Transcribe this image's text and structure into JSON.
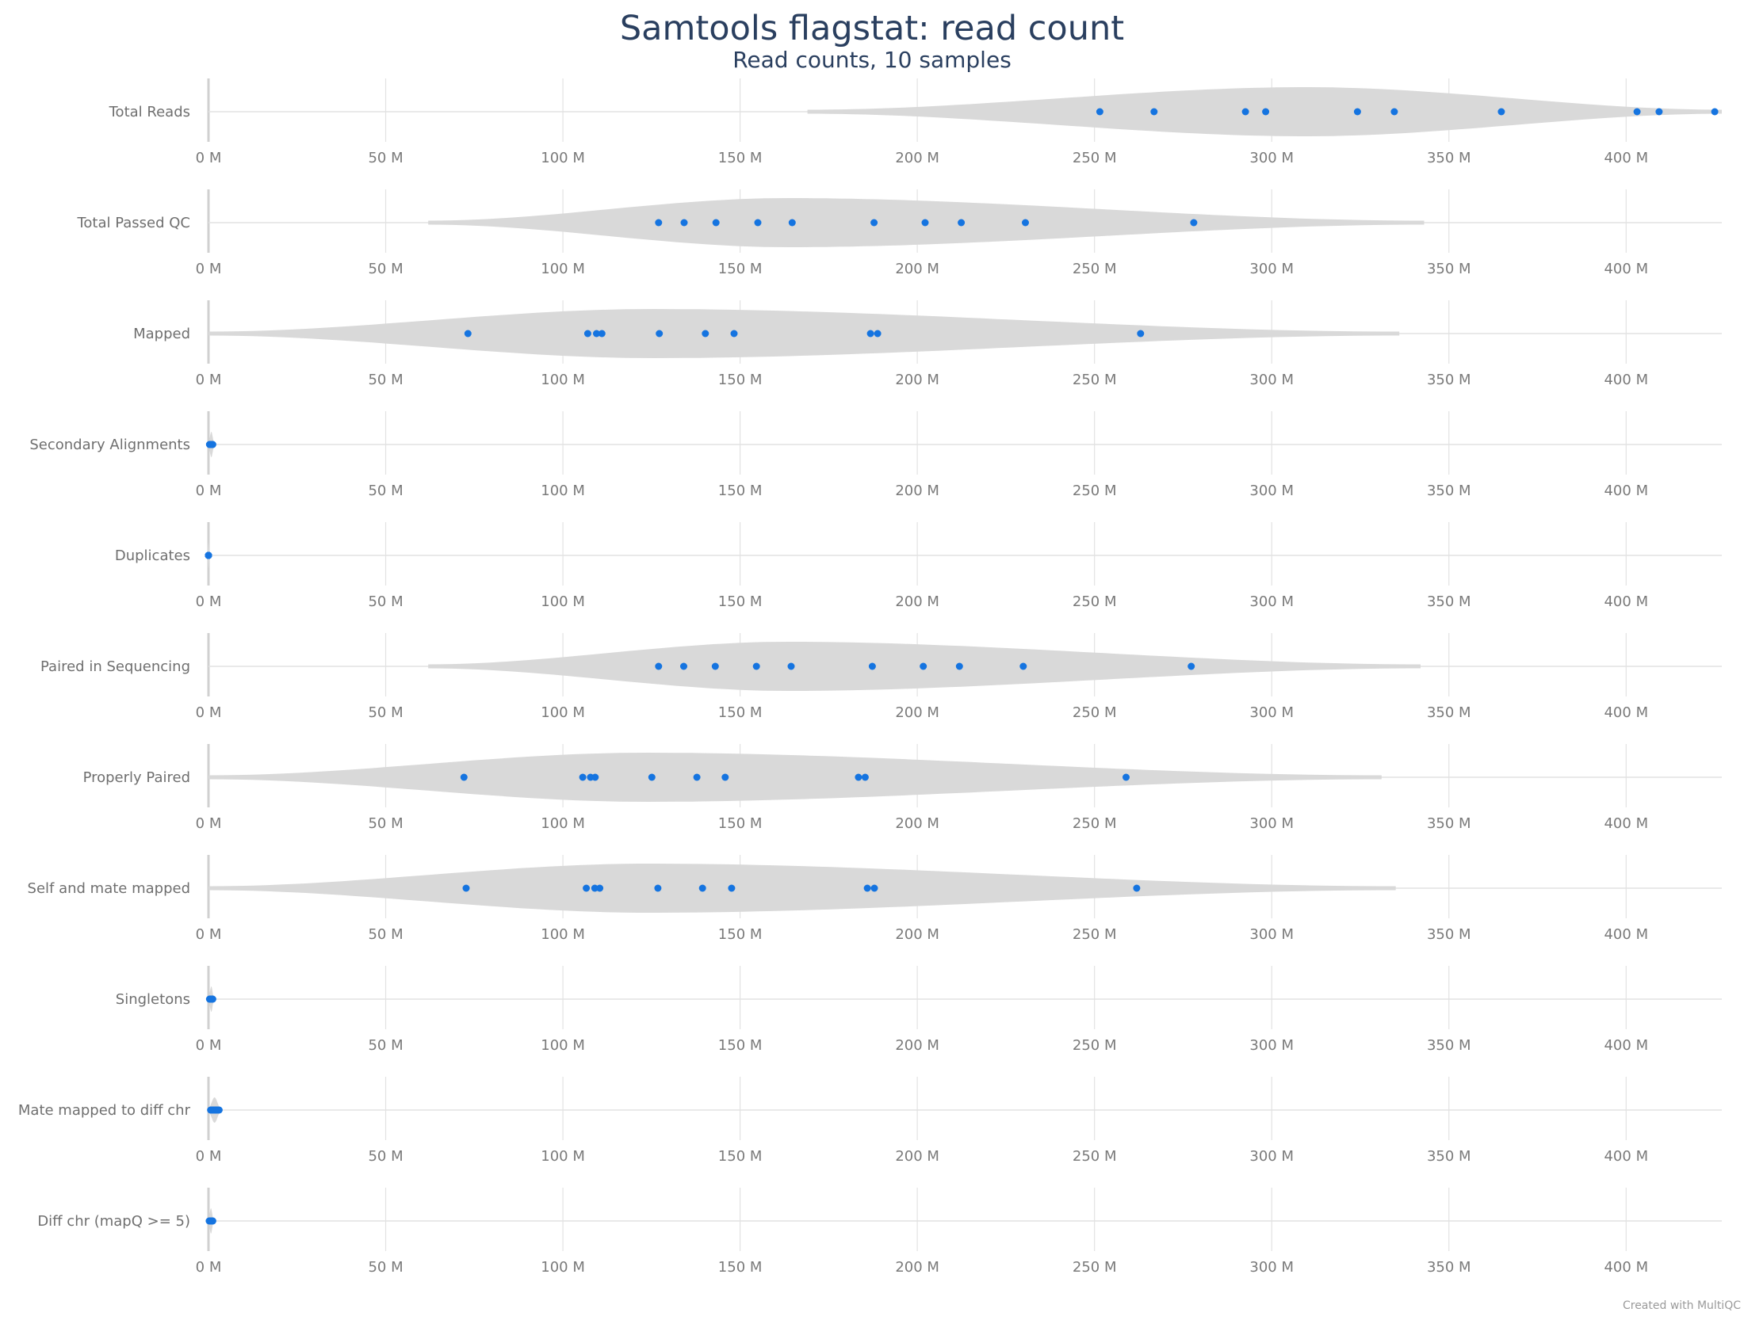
{
  "colors": {
    "point": "#1574e0",
    "violin": "#d9d9d9",
    "gridline": "#e2e2e2",
    "zero_line": "#d0d0d0",
    "title": "#2a3f5f",
    "label": "#6f6f6f"
  },
  "credit": "Created with MultiQC",
  "chart_data": {
    "type": "violin",
    "title": "Samtools flagstat: read count",
    "subtitle": "Read counts, 10 samples",
    "unit": "M",
    "xlim": [
      0,
      427
    ],
    "x_ticks": [
      0,
      50,
      100,
      150,
      200,
      250,
      300,
      350,
      400
    ],
    "x_tick_labels": [
      "0 M",
      "50 M",
      "100 M",
      "150 M",
      "200 M",
      "250 M",
      "300 M",
      "350 M",
      "400 M"
    ],
    "grid": true,
    "metrics": [
      {
        "label": "Total Reads",
        "values": [
          251.5,
          266.8,
          292.6,
          298.3,
          324.2,
          334.6,
          364.8,
          403.1,
          409.3,
          425.0
        ],
        "violin_range": [
          169,
          427
        ],
        "violin_peak": 310,
        "violin_max_width": 31
      },
      {
        "label": "Total Passed QC",
        "values": [
          127.0,
          134.2,
          143.2,
          155.0,
          164.7,
          187.8,
          202.2,
          212.4,
          230.5,
          278.0
        ],
        "violin_range": [
          62,
          343
        ],
        "violin_peak": 163,
        "violin_max_width": 31
      },
      {
        "label": "Mapped",
        "values": [
          73.2,
          107.0,
          109.5,
          111.0,
          127.2,
          140.2,
          148.3,
          186.8,
          188.8,
          263.0
        ],
        "violin_range": [
          0,
          336
        ],
        "violin_peak": 125,
        "violin_max_width": 31
      },
      {
        "label": "Secondary Alignments",
        "values": [
          0.3,
          0.4,
          0.5,
          0.6,
          0.7,
          0.8,
          0.9,
          1.0,
          1.1,
          1.2
        ],
        "violin_range": [
          0,
          1.6
        ],
        "violin_peak": 0.8,
        "violin_max_width": 16
      },
      {
        "label": "Duplicates",
        "values": [
          0,
          0,
          0,
          0,
          0,
          0,
          0,
          0,
          0,
          0
        ],
        "violin_range": [
          -0.4,
          0.4
        ],
        "violin_peak": 0,
        "violin_max_width": 16
      },
      {
        "label": "Paired in Sequencing",
        "values": [
          127.0,
          134.1,
          143.0,
          154.6,
          164.4,
          187.3,
          201.7,
          211.9,
          229.9,
          277.3
        ],
        "violin_range": [
          62,
          342
        ],
        "violin_peak": 163,
        "violin_max_width": 31
      },
      {
        "label": "Properly Paired",
        "values": [
          72.1,
          105.6,
          107.8,
          109.1,
          125.1,
          137.8,
          145.8,
          183.4,
          185.3,
          258.9
        ],
        "violin_range": [
          0,
          331
        ],
        "violin_peak": 123,
        "violin_max_width": 31
      },
      {
        "label": "Self and mate mapped",
        "values": [
          72.7,
          106.6,
          109.0,
          110.4,
          126.8,
          139.4,
          147.6,
          185.9,
          187.9,
          261.9
        ],
        "violin_range": [
          0,
          335
        ],
        "violin_peak": 124,
        "violin_max_width": 31
      },
      {
        "label": "Singletons",
        "values": [
          0.3,
          0.4,
          0.5,
          0.6,
          0.7,
          0.8,
          0.9,
          1.0,
          1.1,
          1.2
        ],
        "violin_range": [
          0,
          1.5
        ],
        "violin_peak": 0.8,
        "violin_max_width": 16
      },
      {
        "label": "Mate mapped to diff chr",
        "values": [
          0.6,
          0.9,
          1.2,
          1.5,
          1.8,
          2.0,
          2.2,
          2.4,
          2.7,
          3.0
        ],
        "violin_range": [
          0,
          3.4
        ],
        "violin_peak": 1.7,
        "violin_max_width": 16
      },
      {
        "label": "Diff chr (mapQ >= 5)",
        "values": [
          0.2,
          0.4,
          0.5,
          0.6,
          0.7,
          0.8,
          0.9,
          1.0,
          1.1,
          1.2
        ],
        "violin_range": [
          0,
          1.4
        ],
        "violin_peak": 0.7,
        "violin_max_width": 16
      }
    ]
  }
}
